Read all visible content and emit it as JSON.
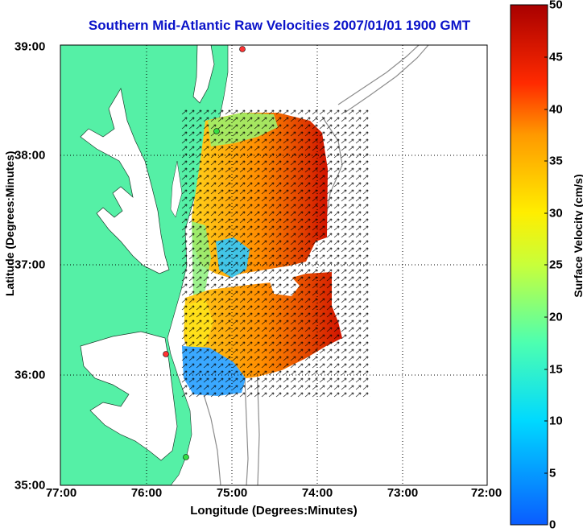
{
  "title": "Southern Mid-Atlantic Raw Velocities 2007/01/01 1900 GMT",
  "x_axis_label": "Longitude (Degrees:Minutes)",
  "y_axis_label": "Latitude (Degrees:Minutes)",
  "colorbar_label": "Surface Velocity (cm/s)",
  "x_ticks": [
    "77:00",
    "76:00",
    "75:00",
    "74:00",
    "73:00",
    "72:00"
  ],
  "y_ticks": [
    "39:00",
    "38:00",
    "37:00",
    "36:00",
    "35:00"
  ],
  "colorbar_ticks": [
    "50",
    "45",
    "40",
    "35",
    "30",
    "25",
    "20",
    "15",
    "10",
    "5",
    "0"
  ],
  "colors": {
    "title": "#0b13c9",
    "land": "#55f0a6",
    "water": "#ffffff",
    "grid": "#000000",
    "bathymetry": "#8c8c8c",
    "station": "#ff3333",
    "station_green": "#33dd44"
  },
  "map": {
    "lon_range": [
      -77,
      -72
    ],
    "lat_range": [
      35,
      39
    ],
    "colorbar_range": [
      0,
      50
    ],
    "grid": "dotted"
  }
}
